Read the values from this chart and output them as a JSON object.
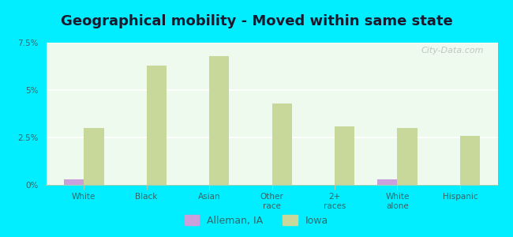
{
  "title": "Geographical mobility - Moved within same state",
  "categories": [
    "White",
    "Black",
    "Asian",
    "Other\nrace",
    "2+\nraces",
    "White\nalone",
    "Hispanic"
  ],
  "alleman_values": [
    0.3,
    0.0,
    0.0,
    0.0,
    0.0,
    0.3,
    0.0
  ],
  "iowa_values": [
    3.0,
    6.3,
    6.8,
    4.3,
    3.1,
    3.0,
    2.6
  ],
  "alleman_color": "#c9a0dc",
  "iowa_color": "#c8d89a",
  "ylim": [
    0,
    7.5
  ],
  "yticks": [
    0,
    2.5,
    5.0,
    7.5
  ],
  "ytick_labels": [
    "0%",
    "2.5%",
    "5%",
    "7.5%"
  ],
  "plot_bg_color": "#edfaed",
  "title_fontsize": 13,
  "bar_width": 0.32,
  "legend_alleman": "Alleman, IA",
  "legend_iowa": "Iowa",
  "watermark": "City-Data.com",
  "figure_bg": "#00eeff"
}
